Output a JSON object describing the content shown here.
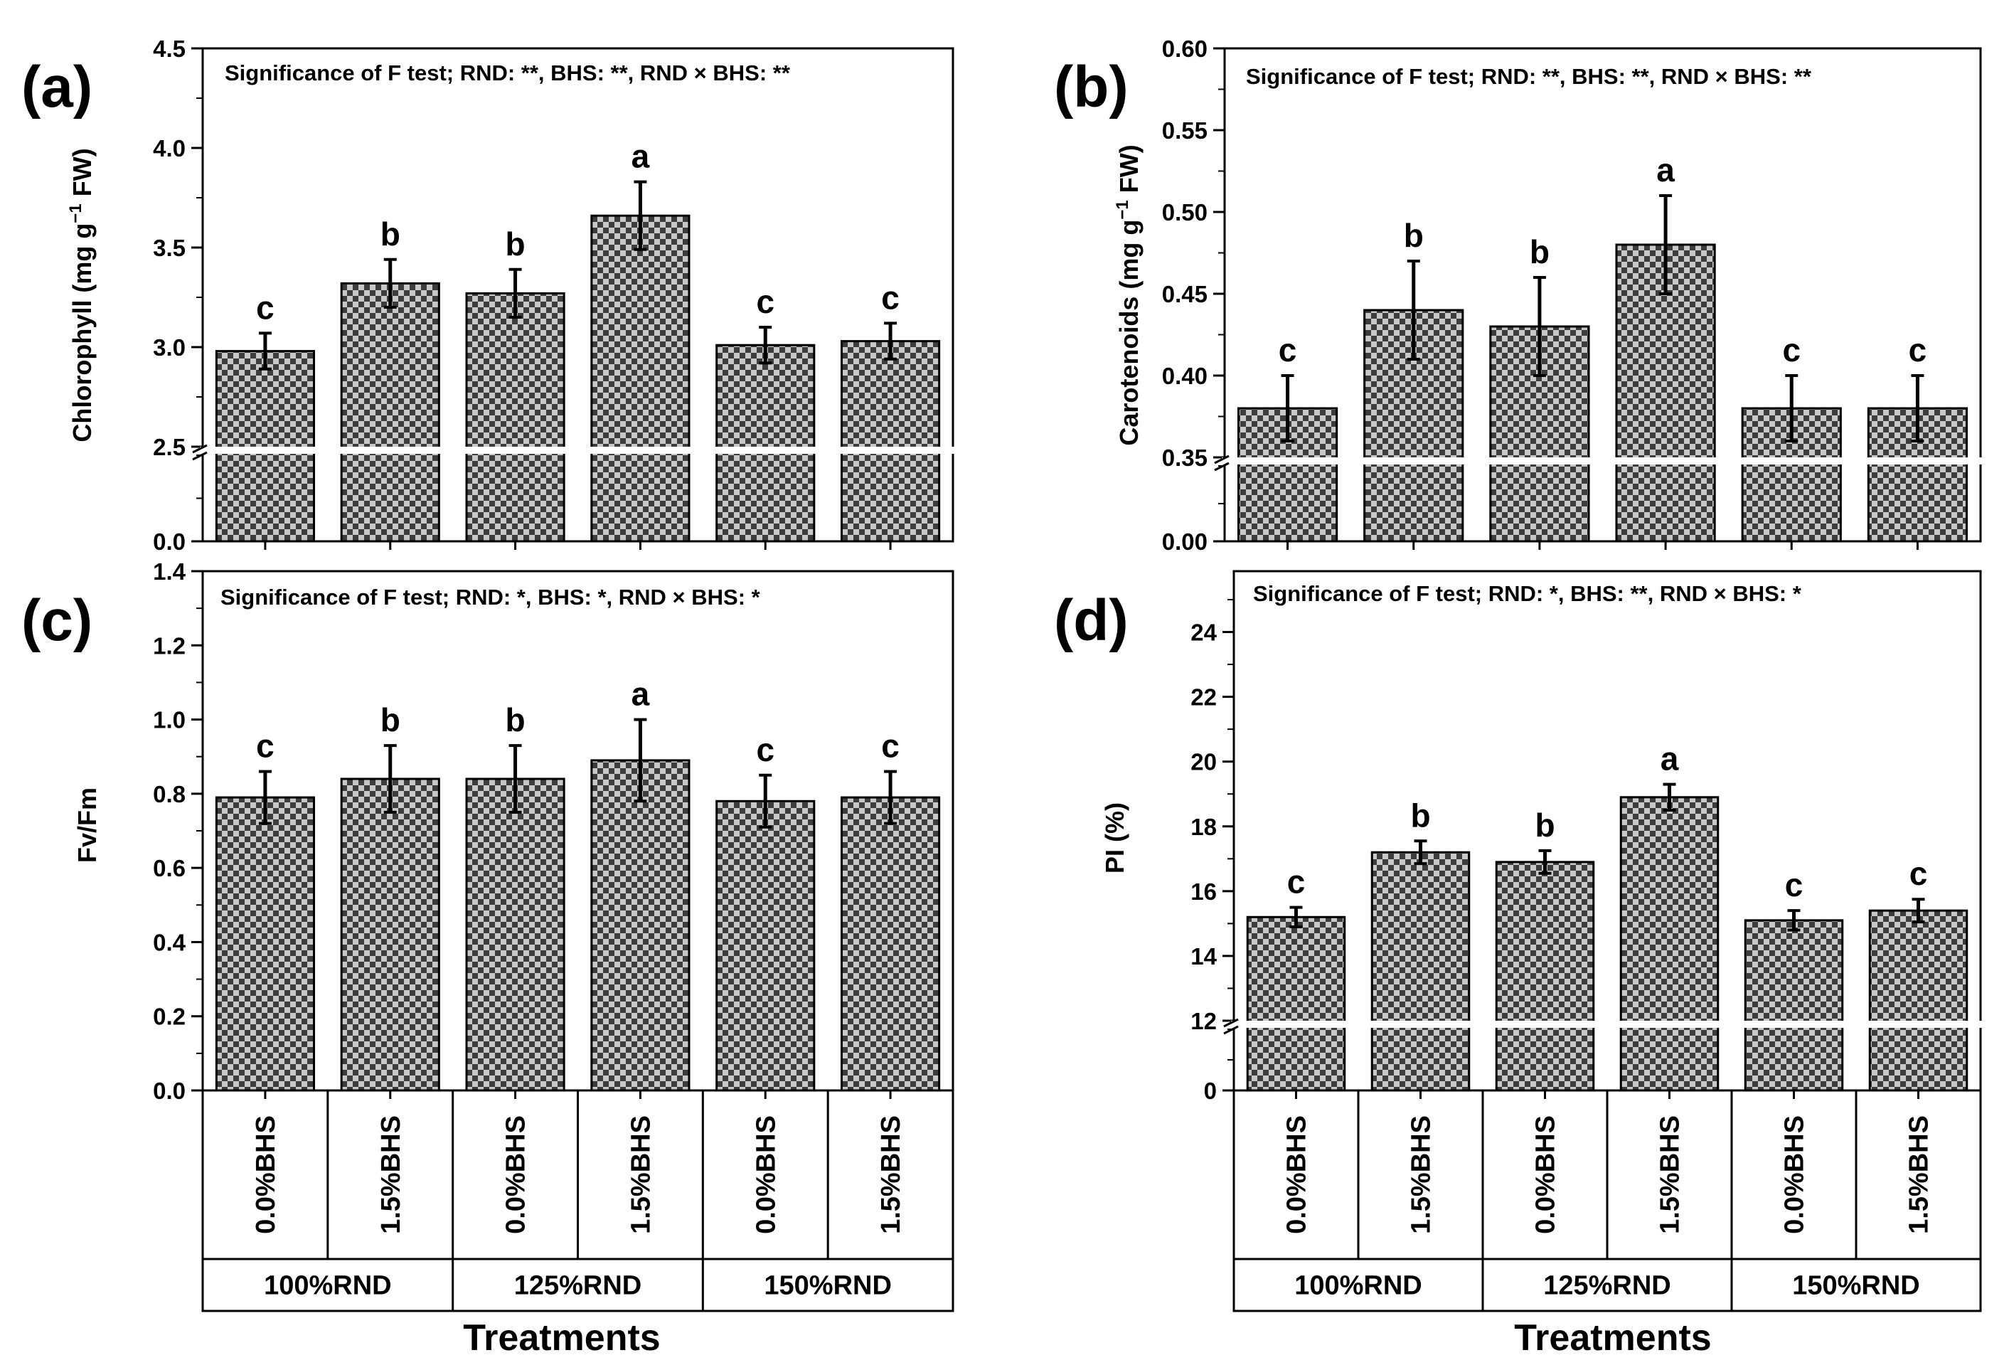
{
  "figure": {
    "xlabel": "Treatments",
    "bhs_labels": [
      "0.0%BHS",
      "1.5%BHS",
      "0.0%BHS",
      "1.5%BHS",
      "0.0%BHS",
      "1.5%BHS"
    ],
    "rnd_groups": [
      "100%RND",
      "125%RND",
      "150%RND"
    ],
    "colors": {
      "bar_dark": "#3c3c3c",
      "bar_light": "#c8c8c8",
      "axis": "#000000",
      "break": "#ffffff"
    }
  },
  "chart_data": [
    {
      "type": "bar",
      "panel_label": "(a)",
      "title": "Significance of F test; RND: **, BHS: **, RND × BHS: **",
      "ylabel": "Chlorophyll (mg g−1 FW)",
      "ylabel_parts": [
        "Chlorophyll (mg g",
        "−1",
        " FW)"
      ],
      "categories": [
        "100%RND 0.0%BHS",
        "100%RND 1.5%BHS",
        "125%RND 0.0%BHS",
        "125%RND 1.5%BHS",
        "150%RND 0.0%BHS",
        "150%RND 1.5%BHS"
      ],
      "values": [
        2.98,
        3.32,
        3.27,
        3.66,
        3.01,
        3.03
      ],
      "errors": [
        0.09,
        0.12,
        0.12,
        0.17,
        0.09,
        0.09
      ],
      "letters": [
        "c",
        "b",
        "b",
        "a",
        "c",
        "c"
      ],
      "axis_break": {
        "lower_range": [
          0,
          0.5
        ],
        "upper_range": [
          2.5,
          4.5
        ]
      },
      "yticks": [
        {
          "value": 0.0,
          "label": "0.0"
        },
        {
          "value": 2.5,
          "label": "2.5"
        },
        {
          "value": 3.0,
          "label": "3.0"
        },
        {
          "value": 3.5,
          "label": "3.5"
        },
        {
          "value": 4.0,
          "label": "4.0"
        },
        {
          "value": 4.5,
          "label": "4.5"
        }
      ],
      "minor_step": 0.25
    },
    {
      "type": "bar",
      "panel_label": "(b)",
      "title": "Significance of F test; RND: **, BHS: **, RND × BHS: **",
      "ylabel": "Carotenoids (mg g−1 FW)",
      "ylabel_parts": [
        "Carotenoids (mg g",
        "−1",
        " FW)"
      ],
      "categories": [
        "100%RND 0.0%BHS",
        "100%RND 1.5%BHS",
        "125%RND 0.0%BHS",
        "125%RND 1.5%BHS",
        "150%RND 0.0%BHS",
        "150%RND 1.5%BHS"
      ],
      "values": [
        0.38,
        0.44,
        0.43,
        0.48,
        0.38,
        0.38
      ],
      "errors": [
        0.02,
        0.03,
        0.03,
        0.03,
        0.02,
        0.02
      ],
      "letters": [
        "c",
        "b",
        "b",
        "a",
        "c",
        "c"
      ],
      "axis_break": {
        "lower_range": [
          0,
          0.05
        ],
        "upper_range": [
          0.35,
          0.6
        ]
      },
      "yticks": [
        {
          "value": 0.0,
          "label": "0.00"
        },
        {
          "value": 0.35,
          "label": "0.35"
        },
        {
          "value": 0.4,
          "label": "0.40"
        },
        {
          "value": 0.45,
          "label": "0.45"
        },
        {
          "value": 0.5,
          "label": "0.50"
        },
        {
          "value": 0.55,
          "label": "0.55"
        },
        {
          "value": 0.6,
          "label": "0.60"
        }
      ],
      "minor_step": 0.025
    },
    {
      "type": "bar",
      "panel_label": "(c)",
      "title": "Significance of F test; RND: *, BHS: *, RND × BHS: *",
      "ylabel": "Fv/Fm",
      "ylabel_parts": [
        "Fv/Fm",
        "",
        ""
      ],
      "categories": [
        "100%RND 0.0%BHS",
        "100%RND 1.5%BHS",
        "125%RND 0.0%BHS",
        "125%RND 1.5%BHS",
        "150%RND 0.0%BHS",
        "150%RND 1.5%BHS"
      ],
      "values": [
        0.79,
        0.84,
        0.84,
        0.89,
        0.78,
        0.79
      ],
      "errors": [
        0.07,
        0.09,
        0.09,
        0.11,
        0.07,
        0.07
      ],
      "letters": [
        "c",
        "b",
        "b",
        "a",
        "c",
        "c"
      ],
      "axis_break": null,
      "ylim": [
        0,
        1.4
      ],
      "yticks": [
        {
          "value": 0.0,
          "label": "0.0"
        },
        {
          "value": 0.2,
          "label": "0.2"
        },
        {
          "value": 0.4,
          "label": "0.4"
        },
        {
          "value": 0.6,
          "label": "0.6"
        },
        {
          "value": 0.8,
          "label": "0.8"
        },
        {
          "value": 1.0,
          "label": "1.0"
        },
        {
          "value": 1.2,
          "label": "1.2"
        },
        {
          "value": 1.4,
          "label": "1.4"
        }
      ],
      "minor_step": 0.1
    },
    {
      "type": "bar",
      "panel_label": "(d)",
      "title": "Significance of F test; RND: *, BHS: **, RND × BHS: *",
      "ylabel": "PI (%)",
      "ylabel_parts": [
        "PI (%)",
        "",
        ""
      ],
      "categories": [
        "100%RND 0.0%BHS",
        "100%RND 1.5%BHS",
        "125%RND 0.0%BHS",
        "125%RND 1.5%BHS",
        "150%RND 0.0%BHS",
        "150%RND 1.5%BHS"
      ],
      "values": [
        15.2,
        17.2,
        16.9,
        18.9,
        15.1,
        15.4
      ],
      "errors": [
        0.3,
        0.35,
        0.35,
        0.4,
        0.3,
        0.35
      ],
      "letters": [
        "c",
        "b",
        "b",
        "a",
        "c",
        "c"
      ],
      "axis_break": {
        "lower_range": [
          0,
          2
        ],
        "upper_range": [
          12,
          25
        ]
      },
      "yticks": [
        {
          "value": 0,
          "label": "0"
        },
        {
          "value": 12,
          "label": "12"
        },
        {
          "value": 14,
          "label": "14"
        },
        {
          "value": 16,
          "label": "16"
        },
        {
          "value": 18,
          "label": "18"
        },
        {
          "value": 20,
          "label": "20"
        },
        {
          "value": 22,
          "label": "22"
        },
        {
          "value": 24,
          "label": "24"
        }
      ],
      "minor_step": 1
    }
  ]
}
